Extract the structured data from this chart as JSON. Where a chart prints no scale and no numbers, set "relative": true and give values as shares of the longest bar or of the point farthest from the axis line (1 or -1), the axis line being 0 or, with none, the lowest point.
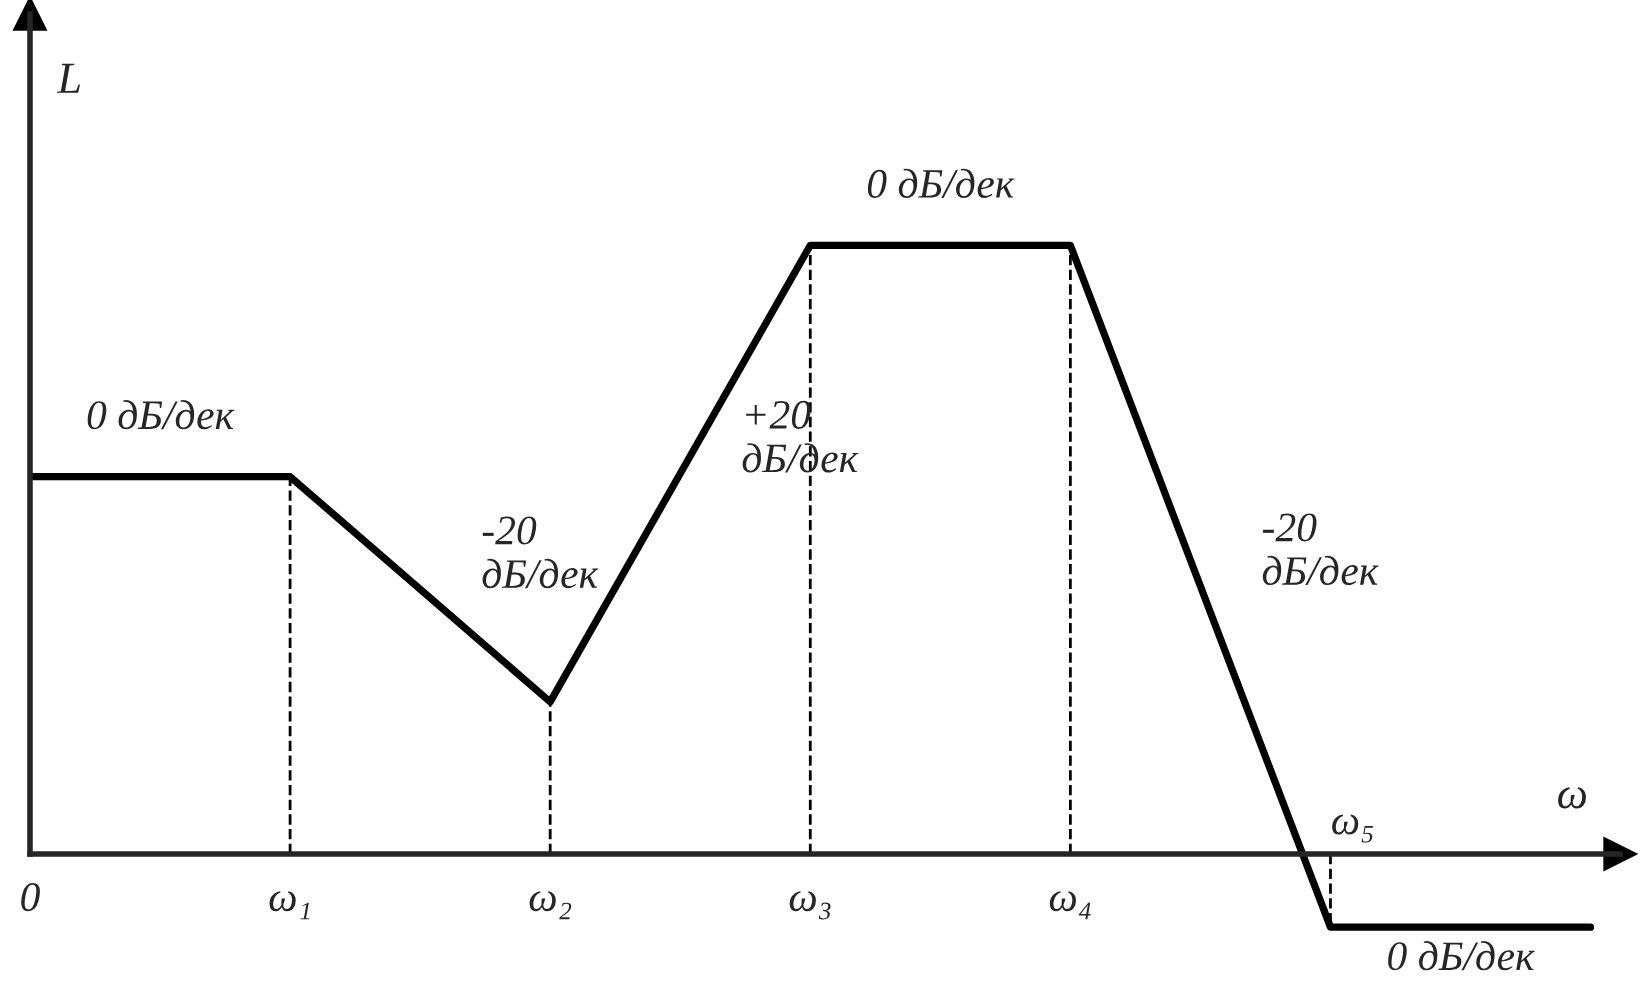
{
  "chart_data": {
    "type": "line",
    "relative": true,
    "xlabel": "ω",
    "ylabel": "L",
    "categories": [
      "0",
      "ω₁",
      "ω₂",
      "ω₃",
      "ω₄",
      "ω₅",
      null
    ],
    "series": [
      {
        "color": "#000000",
        "values": [
          0.62,
          0.62,
          0.25,
          1,
          1,
          -0.12,
          -0.12
        ]
      }
    ],
    "ref_lines": [
      {
        "axis": "x",
        "value": "ω₁",
        "line_style": "dashed",
        "color": "#000000"
      },
      {
        "axis": "x",
        "value": "ω₂",
        "line_style": "dashed",
        "color": "#000000"
      },
      {
        "axis": "x",
        "value": "ω₃",
        "line_style": "dashed",
        "color": "#000000"
      },
      {
        "axis": "x",
        "value": "ω₄",
        "line_style": "dashed",
        "color": "#000000"
      },
      {
        "axis": "x",
        "value": "ω₅",
        "line_style": "dashed",
        "color": "#000000"
      }
    ],
    "annotations": [
      "0 дБ/дек",
      "-20\nдБ/дек",
      "+20\nдБ/дек",
      "0 дБ/дек",
      "-20\nдБ/дек",
      "0 дБ/дек"
    ],
    "line_style": "solid"
  }
}
